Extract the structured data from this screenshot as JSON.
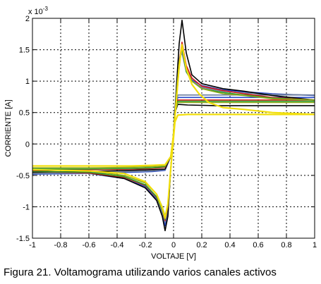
{
  "chart_data": {
    "type": "line",
    "title": "",
    "xlabel": "VOLTAJE [V]",
    "ylabel": "CORRIENTE [A]",
    "y_exponent_label": "x 10",
    "y_exponent_power": "-3",
    "xlim": [
      -1,
      1
    ],
    "ylim": [
      -1.5,
      2
    ],
    "y_unit_scale": 0.001,
    "grid": true,
    "grid_style": "dotted",
    "x_ticks": [
      -1,
      -0.8,
      -0.6,
      -0.4,
      -0.2,
      0,
      0.2,
      0.4,
      0.6,
      0.8,
      1
    ],
    "x_tick_labels": [
      "-1",
      "-0.8",
      "-0.6",
      "-0.4",
      "-0.2",
      "0",
      "0.2",
      "0.4",
      "0.6",
      "0.8",
      "1"
    ],
    "y_ticks": [
      -1.5,
      -1,
      -0.5,
      0,
      0.5,
      1,
      1.5,
      2
    ],
    "y_tick_labels": [
      "-1.5",
      "-1",
      "-0.5",
      "0",
      "0.5",
      "1",
      "1.5",
      "2"
    ],
    "series": [
      {
        "color": "#2448c8",
        "forward": [
          [
            -1,
            -0.48
          ],
          [
            -0.6,
            -0.47
          ],
          [
            -0.3,
            -0.45
          ],
          [
            -0.15,
            -0.44
          ],
          [
            -0.06,
            -0.42
          ],
          [
            -0.02,
            -0.2
          ],
          [
            0,
            0.15
          ],
          [
            0.02,
            0.8
          ],
          [
            0.04,
            1.35
          ],
          [
            0.06,
            1.5
          ],
          [
            0.09,
            1.2
          ],
          [
            0.13,
            1.02
          ],
          [
            0.2,
            0.93
          ],
          [
            0.35,
            0.86
          ],
          [
            0.5,
            0.83
          ],
          [
            0.7,
            0.8
          ],
          [
            1,
            0.77
          ]
        ],
        "reverse": [
          [
            1,
            0.74
          ],
          [
            0.6,
            0.74
          ],
          [
            0.3,
            0.74
          ],
          [
            0.1,
            0.74
          ],
          [
            0.03,
            0.74
          ],
          [
            0.01,
            0.55
          ],
          [
            0,
            0.2
          ],
          [
            -0.02,
            -0.4
          ],
          [
            -0.04,
            -1.1
          ],
          [
            -0.06,
            -1.3
          ],
          [
            -0.08,
            -1.12
          ],
          [
            -0.12,
            -0.88
          ],
          [
            -0.2,
            -0.68
          ],
          [
            -0.35,
            -0.55
          ],
          [
            -0.6,
            -0.47
          ],
          [
            -1,
            -0.46
          ]
        ]
      },
      {
        "color": "#6e7fa0",
        "forward": [
          [
            -1,
            -0.47
          ],
          [
            -0.6,
            -0.46
          ],
          [
            -0.3,
            -0.44
          ],
          [
            -0.15,
            -0.43
          ],
          [
            -0.06,
            -0.41
          ],
          [
            -0.02,
            -0.2
          ],
          [
            0,
            0.15
          ],
          [
            0.02,
            0.8
          ],
          [
            0.04,
            1.35
          ],
          [
            0.06,
            1.45
          ],
          [
            0.09,
            1.15
          ],
          [
            0.13,
            1.0
          ],
          [
            0.2,
            0.9
          ],
          [
            0.35,
            0.84
          ],
          [
            0.5,
            0.81
          ],
          [
            0.7,
            0.79
          ],
          [
            1,
            0.78
          ]
        ],
        "reverse": [
          [
            1,
            0.78
          ],
          [
            0.6,
            0.78
          ],
          [
            0.3,
            0.78
          ],
          [
            0.1,
            0.78
          ],
          [
            0.03,
            0.78
          ],
          [
            0.01,
            0.55
          ],
          [
            0,
            0.2
          ],
          [
            -0.02,
            -0.4
          ],
          [
            -0.04,
            -1.05
          ],
          [
            -0.06,
            -1.25
          ],
          [
            -0.08,
            -1.1
          ],
          [
            -0.12,
            -0.86
          ],
          [
            -0.2,
            -0.66
          ],
          [
            -0.35,
            -0.54
          ],
          [
            -0.6,
            -0.47
          ],
          [
            -1,
            -0.46
          ]
        ]
      },
      {
        "color": "#000000",
        "forward": [
          [
            -1,
            -0.45
          ],
          [
            -0.6,
            -0.44
          ],
          [
            -0.3,
            -0.42
          ],
          [
            -0.15,
            -0.41
          ],
          [
            -0.06,
            -0.4
          ],
          [
            -0.02,
            -0.2
          ],
          [
            0,
            0.15
          ],
          [
            0.02,
            0.9
          ],
          [
            0.04,
            1.6
          ],
          [
            0.06,
            1.97
          ],
          [
            0.09,
            1.45
          ],
          [
            0.13,
            1.1
          ],
          [
            0.2,
            0.96
          ],
          [
            0.35,
            0.88
          ],
          [
            0.5,
            0.84
          ],
          [
            0.7,
            0.77
          ],
          [
            1,
            0.7
          ]
        ],
        "reverse": [
          [
            1,
            0.61
          ],
          [
            0.6,
            0.61
          ],
          [
            0.3,
            0.61
          ],
          [
            0.1,
            0.62
          ],
          [
            0.03,
            0.63
          ],
          [
            0.01,
            0.5
          ],
          [
            0,
            0.2
          ],
          [
            -0.02,
            -0.4
          ],
          [
            -0.04,
            -1.15
          ],
          [
            -0.06,
            -1.38
          ],
          [
            -0.08,
            -1.15
          ],
          [
            -0.12,
            -0.9
          ],
          [
            -0.2,
            -0.7
          ],
          [
            -0.35,
            -0.55
          ],
          [
            -0.6,
            -0.46
          ],
          [
            -1,
            -0.43
          ]
        ]
      },
      {
        "color": "#d81818",
        "forward": [
          [
            -1,
            -0.42
          ],
          [
            -0.6,
            -0.41
          ],
          [
            -0.3,
            -0.4
          ],
          [
            -0.15,
            -0.39
          ],
          [
            -0.06,
            -0.37
          ],
          [
            -0.02,
            -0.2
          ],
          [
            0,
            0.15
          ],
          [
            0.02,
            0.8
          ],
          [
            0.04,
            1.3
          ],
          [
            0.06,
            1.62
          ],
          [
            0.09,
            1.25
          ],
          [
            0.13,
            1.05
          ],
          [
            0.2,
            0.92
          ],
          [
            0.35,
            0.85
          ],
          [
            0.5,
            0.8
          ],
          [
            0.7,
            0.74
          ],
          [
            1,
            0.7
          ]
        ],
        "reverse": [
          [
            1,
            0.7
          ],
          [
            0.6,
            0.7
          ],
          [
            0.3,
            0.7
          ],
          [
            0.1,
            0.7
          ],
          [
            0.03,
            0.7
          ],
          [
            0.01,
            0.5
          ],
          [
            0,
            0.2
          ],
          [
            -0.02,
            -0.4
          ],
          [
            -0.04,
            -1.0
          ],
          [
            -0.06,
            -1.22
          ],
          [
            -0.08,
            -1.05
          ],
          [
            -0.12,
            -0.85
          ],
          [
            -0.2,
            -0.66
          ],
          [
            -0.35,
            -0.53
          ],
          [
            -0.6,
            -0.46
          ],
          [
            -1,
            -0.44
          ]
        ]
      },
      {
        "color": "#2e9a2e",
        "forward": [
          [
            -1,
            -0.4
          ],
          [
            -0.6,
            -0.4
          ],
          [
            -0.3,
            -0.39
          ],
          [
            -0.15,
            -0.38
          ],
          [
            -0.06,
            -0.36
          ],
          [
            -0.02,
            -0.2
          ],
          [
            0,
            0.15
          ],
          [
            0.02,
            0.8
          ],
          [
            0.04,
            1.3
          ],
          [
            0.06,
            1.52
          ],
          [
            0.09,
            1.15
          ],
          [
            0.13,
            1.0
          ],
          [
            0.2,
            0.88
          ],
          [
            0.35,
            0.82
          ],
          [
            0.5,
            0.78
          ],
          [
            0.7,
            0.73
          ],
          [
            1,
            0.7
          ]
        ],
        "reverse": [
          [
            1,
            0.68
          ],
          [
            0.6,
            0.68
          ],
          [
            0.3,
            0.68
          ],
          [
            0.1,
            0.68
          ],
          [
            0.03,
            0.68
          ],
          [
            0.01,
            0.5
          ],
          [
            0,
            0.2
          ],
          [
            -0.02,
            -0.4
          ],
          [
            -0.04,
            -0.98
          ],
          [
            -0.06,
            -1.2
          ],
          [
            -0.08,
            -1.05
          ],
          [
            -0.12,
            -0.84
          ],
          [
            -0.2,
            -0.65
          ],
          [
            -0.35,
            -0.52
          ],
          [
            -0.6,
            -0.45
          ],
          [
            -1,
            -0.44
          ]
        ]
      },
      {
        "color": "#8aa818",
        "forward": [
          [
            -1,
            -0.38
          ],
          [
            -0.6,
            -0.38
          ],
          [
            -0.3,
            -0.37
          ],
          [
            -0.15,
            -0.36
          ],
          [
            -0.06,
            -0.35
          ],
          [
            -0.02,
            -0.2
          ],
          [
            0,
            0.15
          ],
          [
            0.02,
            0.7
          ],
          [
            0.04,
            1.2
          ],
          [
            0.06,
            1.58
          ],
          [
            0.09,
            1.2
          ],
          [
            0.13,
            1.0
          ],
          [
            0.2,
            0.88
          ],
          [
            0.35,
            0.8
          ],
          [
            0.5,
            0.77
          ],
          [
            0.7,
            0.72
          ],
          [
            1,
            0.7
          ]
        ],
        "reverse": [
          [
            1,
            0.66
          ],
          [
            0.6,
            0.66
          ],
          [
            0.3,
            0.66
          ],
          [
            0.1,
            0.66
          ],
          [
            0.03,
            0.66
          ],
          [
            0.01,
            0.5
          ],
          [
            0,
            0.2
          ],
          [
            -0.02,
            -0.4
          ],
          [
            -0.04,
            -0.95
          ],
          [
            -0.06,
            -1.15
          ],
          [
            -0.08,
            -1.0
          ],
          [
            -0.12,
            -0.8
          ],
          [
            -0.2,
            -0.62
          ],
          [
            -0.35,
            -0.5
          ],
          [
            -0.6,
            -0.43
          ],
          [
            -1,
            -0.41
          ]
        ]
      },
      {
        "color": "#f2df0c",
        "forward": [
          [
            -1,
            -0.35
          ],
          [
            -0.6,
            -0.35
          ],
          [
            -0.3,
            -0.35
          ],
          [
            -0.15,
            -0.34
          ],
          [
            -0.06,
            -0.33
          ],
          [
            -0.02,
            -0.2
          ],
          [
            0,
            0.15
          ],
          [
            0.02,
            0.7
          ],
          [
            0.04,
            1.25
          ],
          [
            0.06,
            1.58
          ],
          [
            0.09,
            1.2
          ],
          [
            0.13,
            0.95
          ],
          [
            0.18,
            0.8
          ],
          [
            0.25,
            0.66
          ],
          [
            0.35,
            0.58
          ],
          [
            0.5,
            0.55
          ],
          [
            0.7,
            0.5
          ],
          [
            1,
            0.47
          ]
        ],
        "reverse": [
          [
            1,
            0.47
          ],
          [
            0.6,
            0.47
          ],
          [
            0.3,
            0.47
          ],
          [
            0.1,
            0.47
          ],
          [
            0.03,
            0.46
          ],
          [
            0.01,
            0.35
          ],
          [
            0,
            0.1
          ],
          [
            -0.02,
            -0.4
          ],
          [
            -0.04,
            -0.95
          ],
          [
            -0.06,
            -1.18
          ],
          [
            -0.08,
            -1.02
          ],
          [
            -0.12,
            -0.8
          ],
          [
            -0.2,
            -0.6
          ],
          [
            -0.35,
            -0.47
          ],
          [
            -0.6,
            -0.43
          ],
          [
            -1,
            -0.41
          ]
        ]
      }
    ]
  },
  "caption": "Figura 21.  Voltamograma utilizando varios canales activos"
}
